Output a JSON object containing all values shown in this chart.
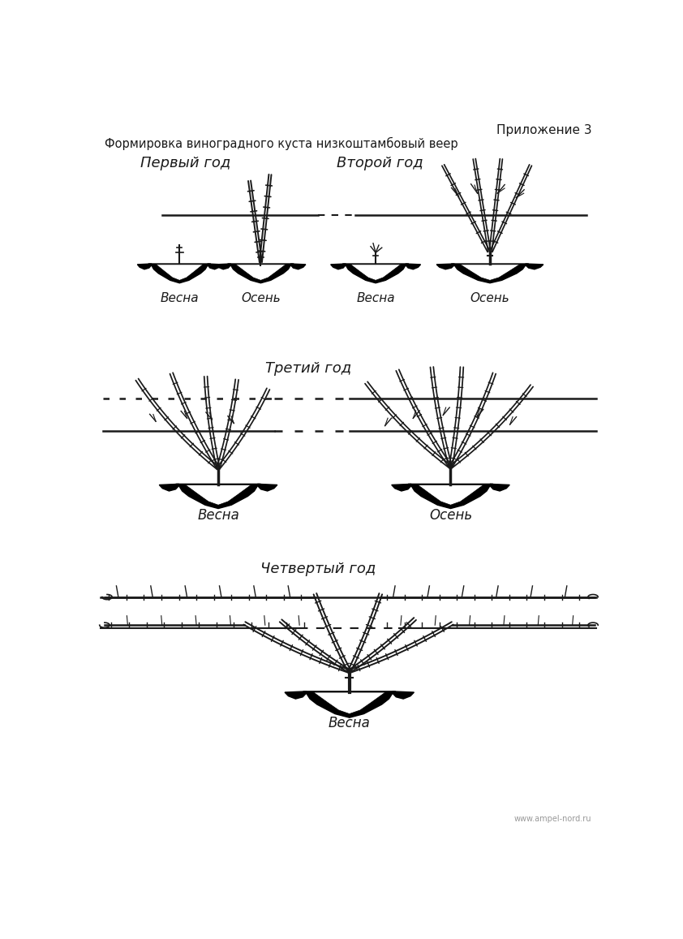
{
  "title_right": "Приложение 3",
  "subtitle": "Формировка виноградного куста низкоштамбовый веер",
  "year1_label": "Первый год",
  "year2_label": "Второй год",
  "year3_label": "Третий год",
  "year4_label": "Четвертый год",
  "vesna": "Весна",
  "osen": "Осень",
  "website": "www.ampel-nord.ru",
  "bg_color": "#ffffff",
  "line_color": "#1a1a1a",
  "text_color": "#1a1a1a",
  "fig_width": 8.42,
  "fig_height": 11.57,
  "dpi": 100
}
